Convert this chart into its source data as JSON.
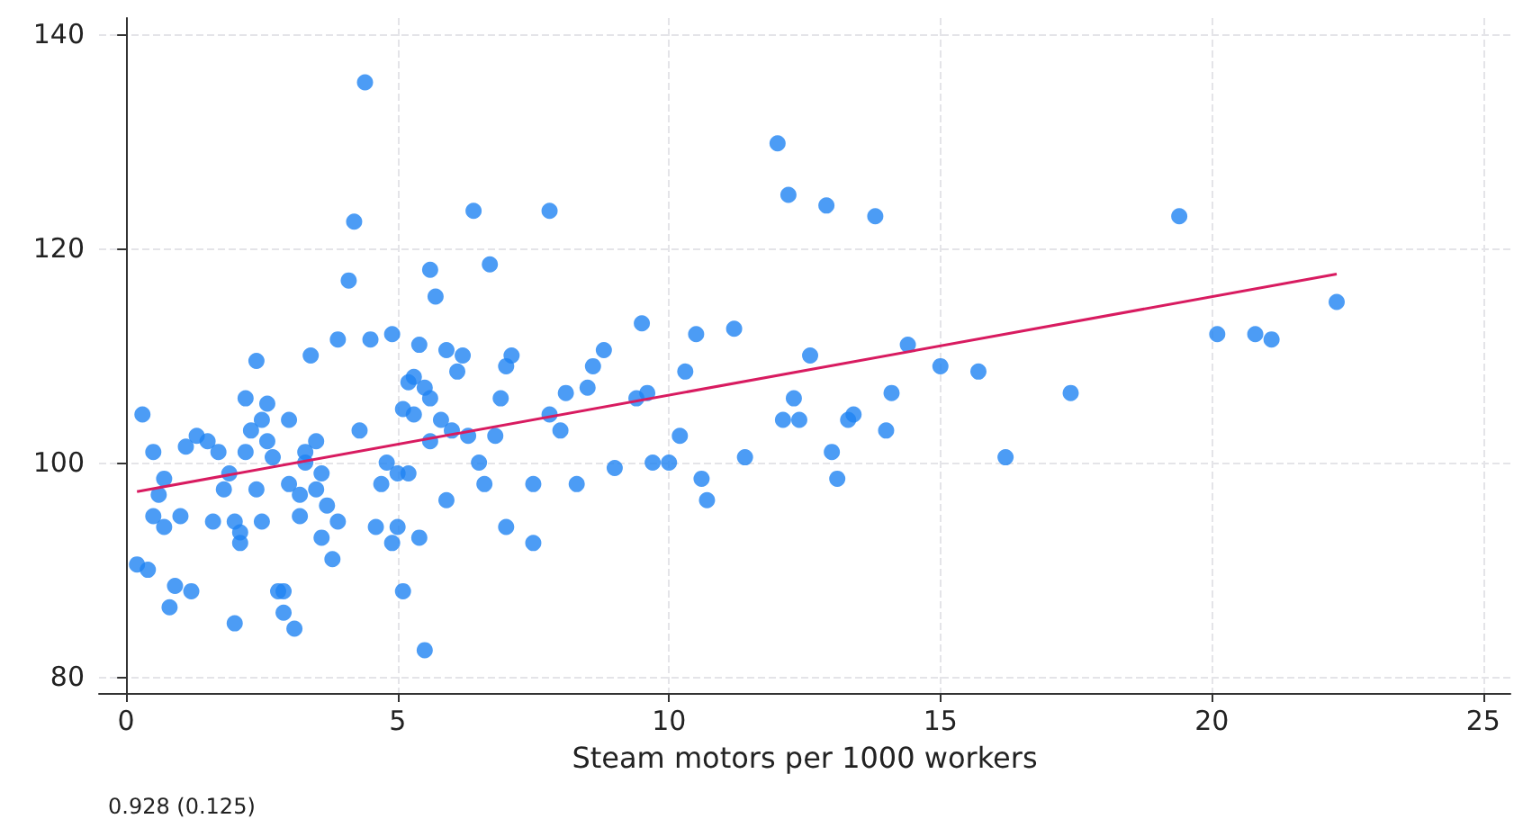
{
  "chart_data": {
    "type": "scatter",
    "xlabel": "Steam motors per 1000 workers",
    "annotations": [
      "0.928 (0.125)"
    ],
    "xlim": [
      -0.5,
      25.5
    ],
    "ylim": [
      78.5,
      141.5
    ],
    "xticks": [
      0,
      5,
      10,
      15,
      20,
      25
    ],
    "yticks": [
      80,
      100,
      120,
      140
    ],
    "grid": true,
    "marker": "circle",
    "series": [
      {
        "color": "#1f83f2",
        "x": [
          0.2,
          0.4,
          0.3,
          0.5,
          0.6,
          0.5,
          0.7,
          0.7,
          0.8,
          0.9,
          1.0,
          1.1,
          1.2,
          1.3,
          1.5,
          1.6,
          1.7,
          1.8,
          1.9,
          2.0,
          2.0,
          2.1,
          2.1,
          2.2,
          2.2,
          2.3,
          2.4,
          2.4,
          2.5,
          2.5,
          2.6,
          2.6,
          2.7,
          2.8,
          2.9,
          2.9,
          3.0,
          3.0,
          3.1,
          3.2,
          3.2,
          3.3,
          3.3,
          3.4,
          3.5,
          3.5,
          3.6,
          3.6,
          3.7,
          3.8,
          3.9,
          3.9,
          4.1,
          4.2,
          4.3,
          4.4,
          4.5,
          4.6,
          4.7,
          4.8,
          4.9,
          4.9,
          5.0,
          5.0,
          5.1,
          5.1,
          5.2,
          5.2,
          5.3,
          5.3,
          5.4,
          5.4,
          5.5,
          5.5,
          5.6,
          5.6,
          5.6,
          5.7,
          5.8,
          5.9,
          5.9,
          6.0,
          6.1,
          6.2,
          6.3,
          6.4,
          6.5,
          6.6,
          6.7,
          6.8,
          6.9,
          7.0,
          7.0,
          7.1,
          7.5,
          7.5,
          7.8,
          7.8,
          8.0,
          8.1,
          8.3,
          8.5,
          8.6,
          8.8,
          9.0,
          9.4,
          9.5,
          9.6,
          9.7,
          10.0,
          10.2,
          10.3,
          10.5,
          10.6,
          10.7,
          11.2,
          11.4,
          12.0,
          12.1,
          12.2,
          12.3,
          12.4,
          12.6,
          12.9,
          13.0,
          13.1,
          13.3,
          13.4,
          13.8,
          14.0,
          14.1,
          14.4,
          15.0,
          15.7,
          16.2,
          17.4,
          19.4,
          20.1,
          20.8,
          21.1,
          22.3
        ],
        "values": [
          90.5,
          90,
          104.5,
          101,
          97,
          95,
          94,
          98.5,
          86.5,
          88.5,
          95,
          101.5,
          88,
          102.5,
          102,
          94.5,
          101,
          97.5,
          99,
          85,
          94.5,
          92.5,
          93.5,
          101,
          106,
          103,
          109.5,
          97.5,
          104,
          94.5,
          105.5,
          102,
          100.5,
          88,
          88,
          86,
          104,
          98,
          84.5,
          97,
          95,
          101,
          100,
          110,
          102,
          97.5,
          99,
          93,
          96,
          91,
          94.5,
          111.5,
          117,
          122.5,
          103,
          135.5,
          111.5,
          94,
          98,
          100,
          112,
          92.5,
          99,
          94,
          88,
          105,
          107.5,
          99,
          108,
          104.5,
          111,
          93,
          82.5,
          107,
          106,
          102,
          118,
          115.5,
          104,
          110.5,
          96.5,
          103,
          108.5,
          110,
          102.5,
          123.5,
          100,
          98,
          118.5,
          102.5,
          106,
          109,
          94,
          110,
          98,
          92.5,
          104.5,
          123.5,
          103,
          106.5,
          98,
          107,
          109,
          110.5,
          99.5,
          106,
          113,
          106.5,
          100,
          100,
          102.5,
          108.5,
          112,
          98.5,
          96.5,
          112.5,
          100.5,
          129.8,
          104,
          125,
          106,
          104,
          110,
          124,
          101,
          98.5,
          104,
          104.5,
          123,
          103,
          106.5,
          111,
          109,
          108.5,
          100.5,
          106.5,
          123,
          112,
          112,
          111.5,
          115
        ]
      },
      {
        "type": "line",
        "color": "#d81b60",
        "marker": "none",
        "x": [
          0.2,
          22.3
        ],
        "values": [
          97.3,
          117.6
        ]
      }
    ]
  }
}
